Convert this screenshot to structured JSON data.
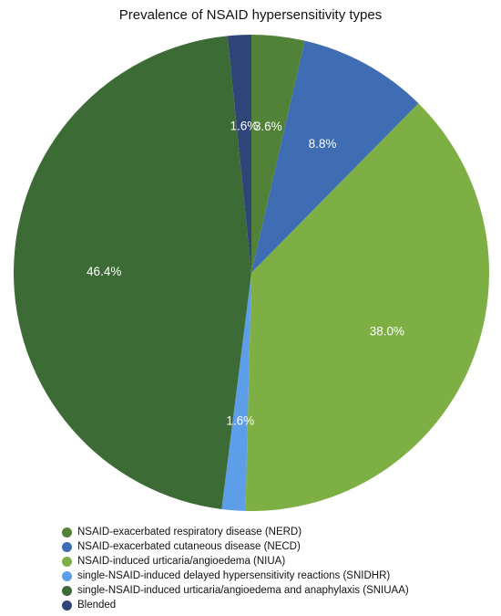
{
  "chart_data": {
    "type": "pie",
    "title": "Prevalence of NSAID hypersensitivity types",
    "legend_position": "bottom-left",
    "series": [
      {
        "name": "NSAID-exacerbated respiratory disease (NERD)",
        "label": "3.6%",
        "value": 3.6,
        "color": "#518237"
      },
      {
        "name": "NSAID-exacerbated cutaneous disease (NECD)",
        "label": "8.8%",
        "value": 8.8,
        "color": "#3f6db3"
      },
      {
        "name": "NSAID-induced urticaria/angioedema (NIUA)",
        "label": "38.0%",
        "value": 38.0,
        "color": "#7daf45"
      },
      {
        "name": "single-NSAID-induced delayed hypersensitivity reactions (SNIDHR)",
        "label": "1.6%",
        "value": 1.6,
        "color": "#5c9ee8"
      },
      {
        "name": "single-NSAID-induced urticaria/angioedema and anaphylaxis (SNIUAA)",
        "label": "46.4%",
        "value": 46.4,
        "color": "#3d6b36"
      },
      {
        "name": "Blended",
        "label": "1.6%",
        "value": 1.6,
        "color": "#2f4479"
      }
    ]
  }
}
